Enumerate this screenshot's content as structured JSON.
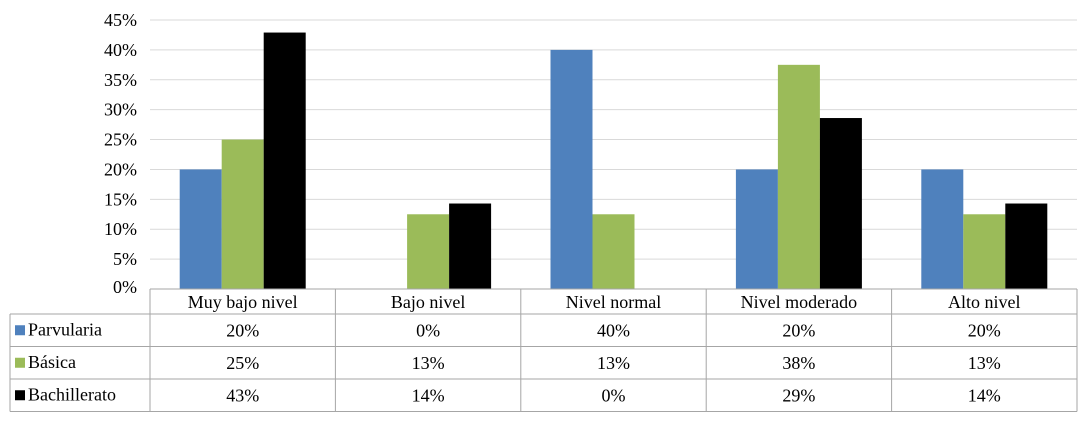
{
  "chart_data": {
    "type": "bar",
    "title": "",
    "xlabel": "",
    "ylabel": "",
    "categories": [
      "Muy bajo nivel",
      "Bajo nivel",
      "Nivel normal",
      "Nivel moderado",
      "Alto nivel"
    ],
    "series": [
      {
        "name": "Parvularia",
        "color": "#4F81BD",
        "values": [
          20,
          0,
          40,
          20,
          20
        ],
        "labels": [
          "20%",
          "0%",
          "40%",
          "20%",
          "20%"
        ]
      },
      {
        "name": "Básica",
        "color": "#9BBB59",
        "values": [
          25,
          12.5,
          12.5,
          37.5,
          12.5
        ],
        "labels": [
          "25%",
          "13%",
          "13%",
          "38%",
          "13%"
        ]
      },
      {
        "name": "Bachillerato",
        "color": "#000000",
        "values": [
          42.9,
          14.3,
          0,
          28.6,
          14.3
        ],
        "labels": [
          "43%",
          "14%",
          "0%",
          "29%",
          "14%"
        ]
      }
    ],
    "ylim": [
      0,
      45
    ],
    "ytick_step": 5,
    "ytick_labels": [
      "0%",
      "5%",
      "10%",
      "15%",
      "20%",
      "25%",
      "30%",
      "35%",
      "40%",
      "45%"
    ],
    "grid": true,
    "legend": "data-table-left",
    "gridline_color": "#D9D9D9",
    "table_border_color": "#A6A6A6"
  }
}
